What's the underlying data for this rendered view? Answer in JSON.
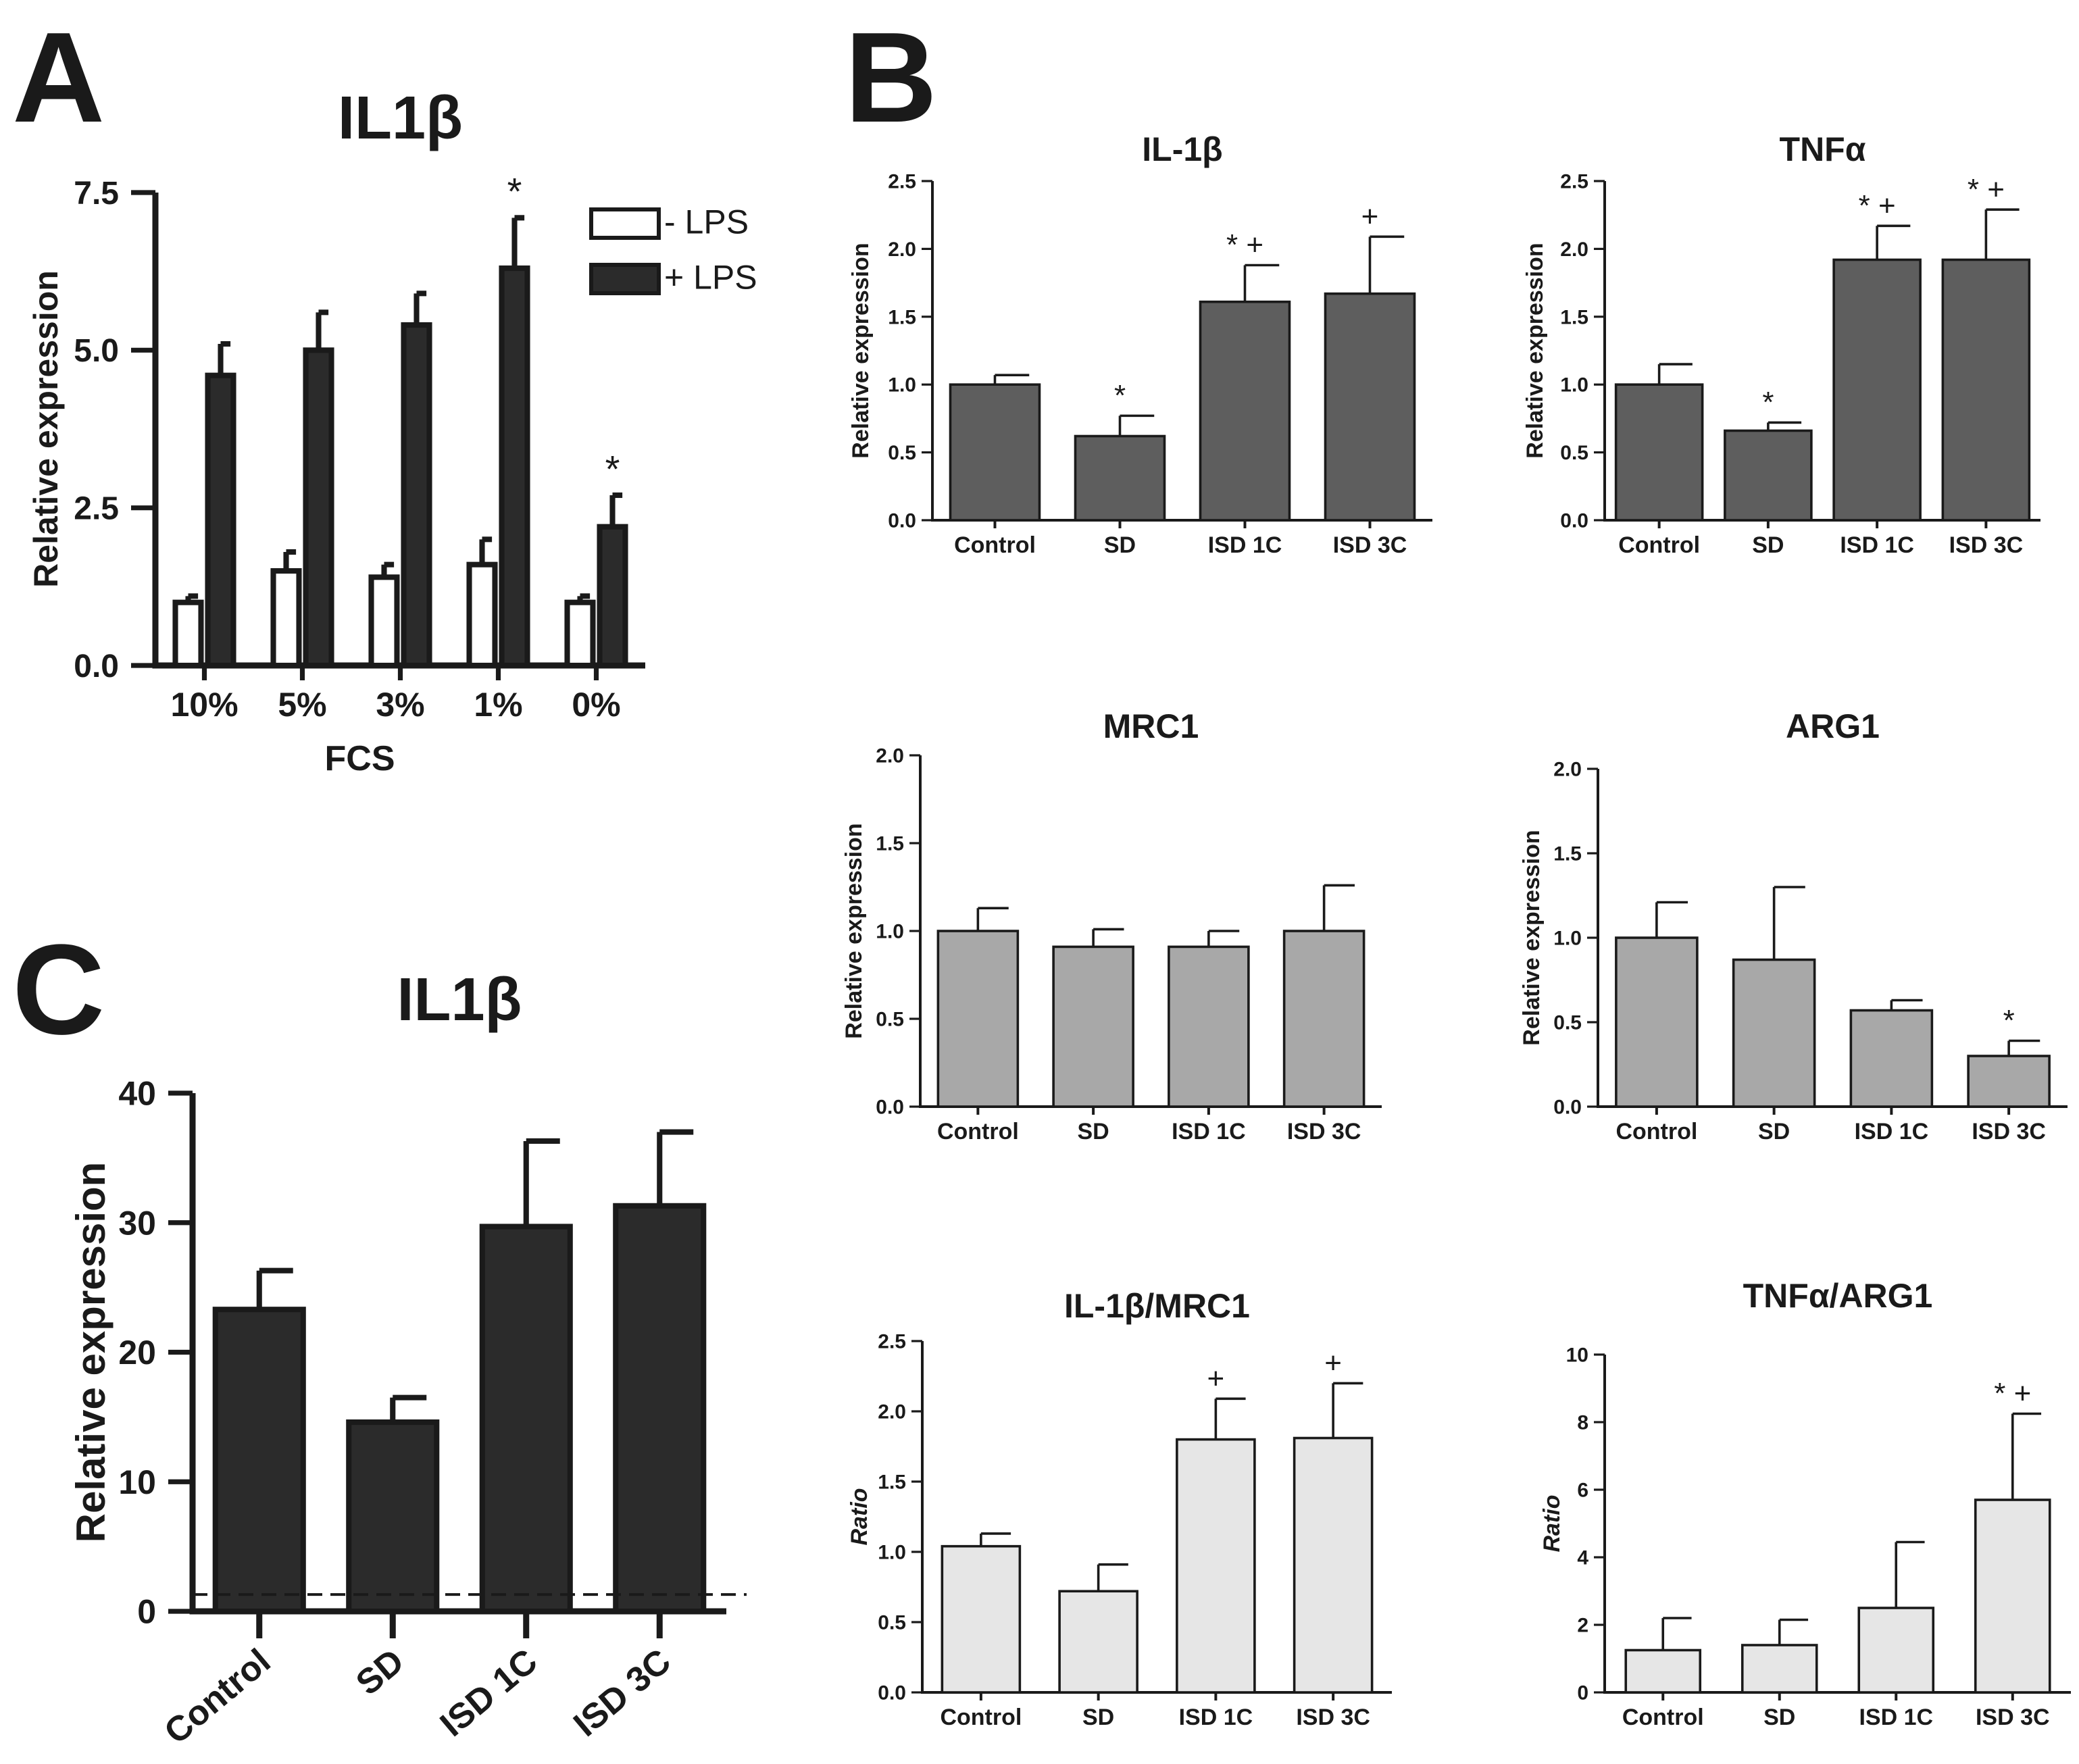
{
  "panel_labels": {
    "a": "A",
    "b": "B",
    "c": "C"
  },
  "colors": {
    "axis": "#1a1a1a",
    "plus_lps": "#2b2b2b",
    "minus_lps": "#ffffff",
    "b_top": "#5e5e5e",
    "b_mid": "#a8a8a8",
    "b_bottom": "#e6e6e6",
    "c_bars": "#2b2b2b"
  },
  "chart_data": [
    {
      "id": "A",
      "type": "bar",
      "title": "IL1β",
      "xlabel": "FCS",
      "ylabel": "Relative expression",
      "categories": [
        "10%",
        "5%",
        "3%",
        "1%",
        "0%"
      ],
      "ylim": [
        0,
        7.5
      ],
      "yticks": [
        "0.0",
        "2.5",
        "5.0",
        "7.5"
      ],
      "legend": [
        "- LPS",
        "+ LPS"
      ],
      "legend_position": "top-right",
      "series": [
        {
          "name": "- LPS",
          "values": [
            1.0,
            1.5,
            1.4,
            1.6,
            1.0
          ],
          "errors": [
            0.1,
            0.3,
            0.2,
            0.4,
            0.1
          ],
          "annotations": [
            "",
            "",
            "",
            "",
            ""
          ]
        },
        {
          "name": "+ LPS",
          "values": [
            4.6,
            5.0,
            5.4,
            6.3,
            2.2
          ],
          "errors": [
            0.5,
            0.6,
            0.5,
            0.8,
            0.5
          ],
          "annotations": [
            "",
            "",
            "",
            "*",
            "*"
          ]
        }
      ]
    },
    {
      "id": "B1",
      "type": "bar",
      "title": "IL-1β",
      "ylabel": "Relative expression",
      "categories": [
        "Control",
        "SD",
        "ISD 1C",
        "ISD 3C"
      ],
      "ylim": [
        0,
        2.5
      ],
      "yticks": [
        "0.0",
        "0.5",
        "1.0",
        "1.5",
        "2.0",
        "2.5"
      ],
      "values": [
        1.0,
        0.62,
        1.61,
        1.67
      ],
      "errors": [
        0.07,
        0.15,
        0.27,
        0.42
      ],
      "annotations": [
        "",
        "*",
        "* +",
        "+"
      ]
    },
    {
      "id": "B2",
      "type": "bar",
      "title": "TNFα",
      "ylabel": "Relative expression",
      "categories": [
        "Control",
        "SD",
        "ISD 1C",
        "ISD 3C"
      ],
      "ylim": [
        0,
        2.5
      ],
      "yticks": [
        "0.0",
        "0.5",
        "1.0",
        "1.5",
        "2.0",
        "2.5"
      ],
      "values": [
        1.0,
        0.66,
        1.92,
        1.92
      ],
      "errors": [
        0.15,
        0.06,
        0.25,
        0.37
      ],
      "annotations": [
        "",
        "*",
        "* +",
        "* +"
      ]
    },
    {
      "id": "B3",
      "type": "bar",
      "title": "MRC1",
      "ylabel": "Relative expression",
      "categories": [
        "Control",
        "SD",
        "ISD 1C",
        "ISD 3C"
      ],
      "ylim": [
        0,
        2.0
      ],
      "yticks": [
        "0.0",
        "0.5",
        "1.0",
        "1.5",
        "2.0"
      ],
      "values": [
        1.0,
        0.91,
        0.91,
        1.0
      ],
      "errors": [
        0.13,
        0.1,
        0.09,
        0.26
      ],
      "annotations": [
        "",
        "",
        "",
        ""
      ]
    },
    {
      "id": "B4",
      "type": "bar",
      "title": "ARG1",
      "ylabel": "Relative expression",
      "categories": [
        "Control",
        "SD",
        "ISD 1C",
        "ISD 3C"
      ],
      "ylim": [
        0,
        2.0
      ],
      "yticks": [
        "0.0",
        "0.5",
        "1.0",
        "1.5",
        "2.0"
      ],
      "values": [
        1.0,
        0.87,
        0.57,
        0.3
      ],
      "errors": [
        0.21,
        0.43,
        0.06,
        0.09
      ],
      "annotations": [
        "",
        "",
        "",
        "*"
      ]
    },
    {
      "id": "B5",
      "type": "bar",
      "title": "IL-1β/MRC1",
      "ylabel": "Ratio",
      "categories": [
        "Control",
        "SD",
        "ISD 1C",
        "ISD 3C"
      ],
      "ylim": [
        0,
        2.5
      ],
      "yticks": [
        "0.0",
        "0.5",
        "1.0",
        "1.5",
        "2.0",
        "2.5"
      ],
      "values": [
        1.04,
        0.72,
        1.8,
        1.81
      ],
      "errors": [
        0.09,
        0.19,
        0.29,
        0.39
      ],
      "annotations": [
        "",
        "",
        "+",
        "+"
      ]
    },
    {
      "id": "B6",
      "type": "bar",
      "title": "TNFα/ARG1",
      "ylabel": "Ratio",
      "categories": [
        "Control",
        "SD",
        "ISD 1C",
        "ISD 3C"
      ],
      "ylim": [
        0,
        10
      ],
      "yticks": [
        "0",
        "2",
        "4",
        "6",
        "8",
        "10"
      ],
      "values": [
        1.25,
        1.4,
        2.5,
        5.7
      ],
      "errors": [
        0.95,
        0.75,
        1.95,
        2.55
      ],
      "annotations": [
        "",
        "",
        "",
        "* +"
      ]
    },
    {
      "id": "C",
      "type": "bar",
      "title": "IL1β",
      "ylabel": "Relative expression",
      "categories": [
        "Control",
        "SD",
        "ISD 1C",
        "ISD 3C"
      ],
      "ylim": [
        0,
        40
      ],
      "yticks": [
        "0",
        "10",
        "20",
        "30",
        "40"
      ],
      "values": [
        23.3,
        14.6,
        29.7,
        31.3
      ],
      "errors": [
        3.0,
        1.9,
        6.6,
        5.7
      ],
      "annotations": [
        "",
        "",
        "",
        ""
      ],
      "reference_line": 1.3
    }
  ]
}
